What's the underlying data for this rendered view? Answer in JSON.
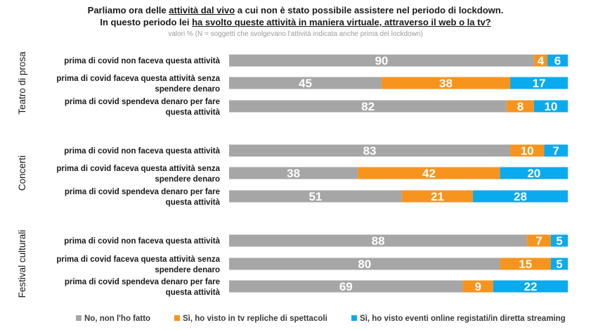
{
  "title": {
    "line1_pre": "Parliamo ora delle ",
    "line1_u": "attività dal vivo",
    "line1_post": " a cui non è stato possibile assistere nel periodo di lockdown.",
    "line2_pre": "In questo periodo lei ",
    "line2_u": "ha svolto queste attività in maniera virtuale, attraverso il web o la tv?",
    "subtitle": "valori % (N = soggetti che svolgevano l'attività indicata anche prima del lockdown)"
  },
  "chart_data": {
    "type": "stacked-bar-horizontal",
    "xlim": [
      0,
      100
    ],
    "series": [
      {
        "name": "No, non l'ho fatto",
        "color": "#a6a6a6"
      },
      {
        "name": "Sì, ho visto in tv repliche di spettacoli",
        "color": "#f7941d"
      },
      {
        "name": "Sì, ho visto eventi online registati/in diretta streaming",
        "color": "#0aaaee"
      }
    ],
    "groups": [
      {
        "name": "Teatro di prosa",
        "rows": [
          {
            "label": [
              "prima di covid non faceva questa attività"
            ],
            "values": [
              90,
              4,
              6
            ]
          },
          {
            "label": [
              "prima di covid faceva questa attività senza",
              "spendere denaro"
            ],
            "values": [
              45,
              38,
              17
            ]
          },
          {
            "label": [
              "prima di covid spendeva denaro per fare",
              "questa attività"
            ],
            "values": [
              82,
              8,
              10
            ]
          }
        ]
      },
      {
        "name": "Concerti",
        "rows": [
          {
            "label": [
              "prima di covid non faceva questa attività"
            ],
            "values": [
              83,
              10,
              7
            ]
          },
          {
            "label": [
              "prima di covid faceva questa attività senza",
              "spendere denaro"
            ],
            "values": [
              38,
              42,
              20
            ]
          },
          {
            "label": [
              "prima di covid spendeva denaro per fare",
              "questa attività"
            ],
            "values": [
              51,
              21,
              28
            ]
          }
        ]
      },
      {
        "name": "Festival culturali",
        "rows": [
          {
            "label": [
              "prima di covid non faceva questa attività"
            ],
            "values": [
              88,
              7,
              5
            ]
          },
          {
            "label": [
              "prima di covid faceva questa attività senza",
              "spendere denaro"
            ],
            "values": [
              80,
              15,
              5
            ]
          },
          {
            "label": [
              "prima di covid spendeva denaro per fare",
              "questa attività"
            ],
            "values": [
              69,
              9,
              22
            ]
          }
        ]
      }
    ]
  }
}
